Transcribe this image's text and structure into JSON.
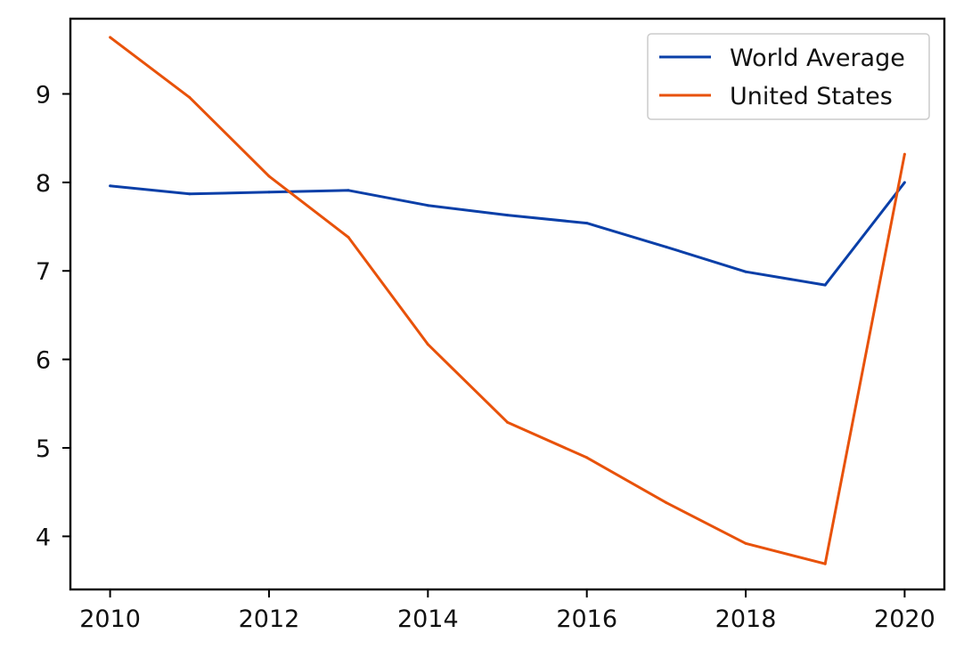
{
  "chart_data": {
    "type": "line",
    "title": "",
    "xlabel": "",
    "ylabel": "",
    "x": [
      2010,
      2011,
      2012,
      2013,
      2014,
      2015,
      2016,
      2017,
      2018,
      2019,
      2020
    ],
    "xlim": [
      2009.5,
      2020.5
    ],
    "ylim": [
      3.4,
      9.85
    ],
    "xticks": [
      "2010",
      "2012",
      "2014",
      "2016",
      "2018",
      "2020"
    ],
    "yticks": [
      "4",
      "5",
      "6",
      "7",
      "8",
      "9"
    ],
    "grid": false,
    "legend_position": "upper-right",
    "series": [
      {
        "name": "World Average",
        "color": "#0a3fa8",
        "values": [
          7.96,
          7.87,
          7.89,
          7.91,
          7.74,
          7.63,
          7.54,
          7.27,
          6.99,
          6.84,
          8.0
        ]
      },
      {
        "name": "United States",
        "color": "#e8520a",
        "values": [
          9.64,
          8.96,
          8.07,
          7.38,
          6.17,
          5.29,
          4.89,
          4.38,
          3.92,
          3.69,
          8.32
        ]
      }
    ]
  }
}
